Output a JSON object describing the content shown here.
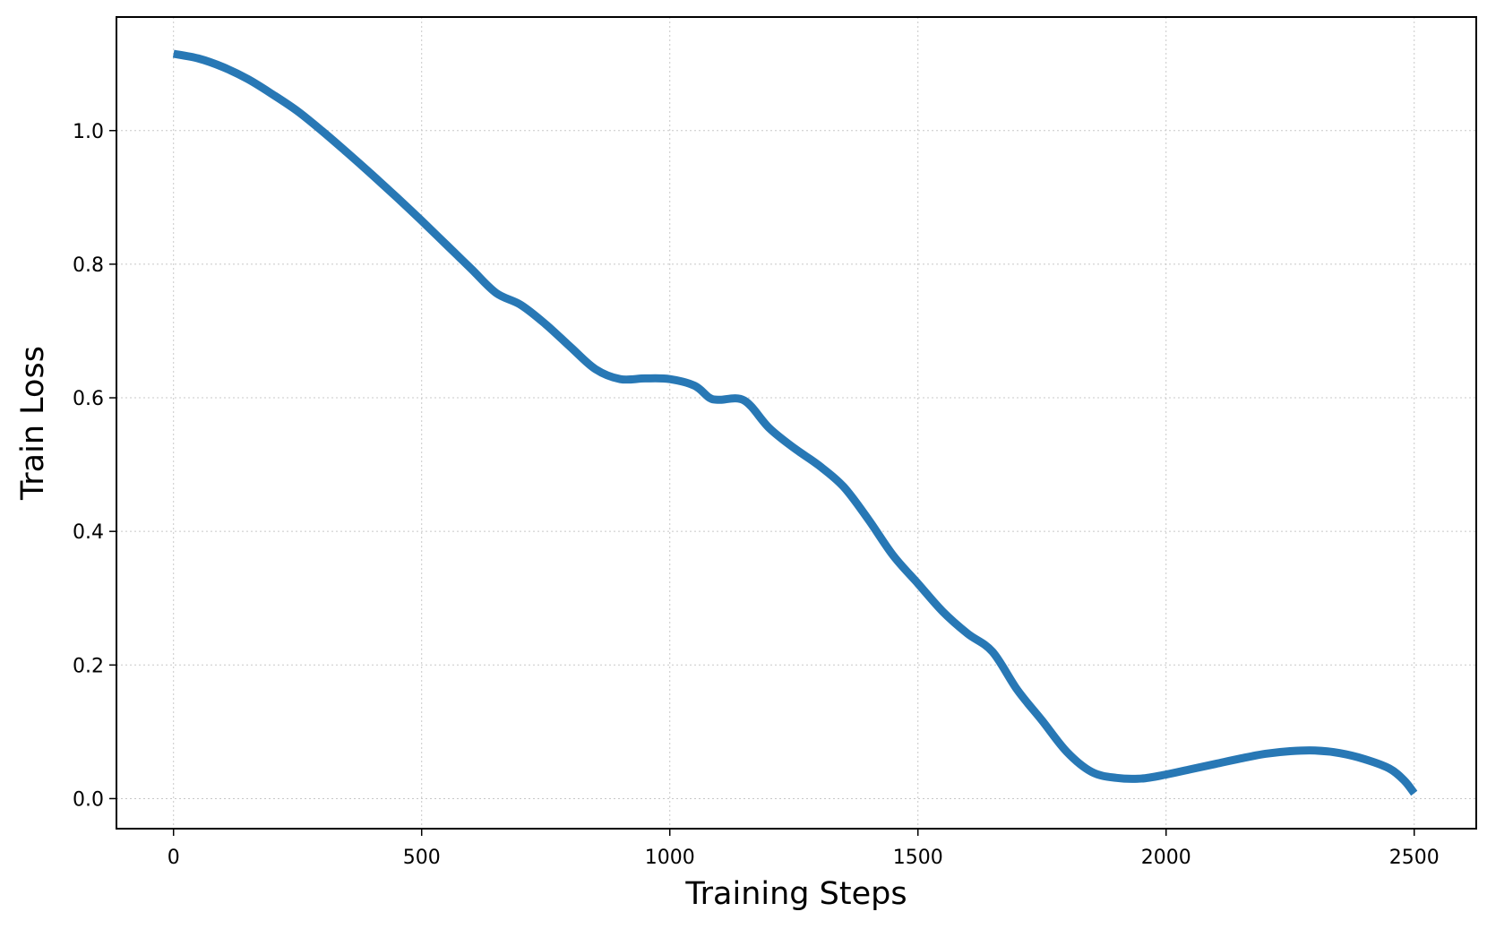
{
  "chart_data": {
    "type": "line",
    "title": "",
    "xlabel": "Training Steps",
    "ylabel": "Train Loss",
    "xlim": [
      -115,
      2625
    ],
    "ylim": [
      -0.045,
      1.17
    ],
    "xticks": [
      0,
      500,
      1000,
      1500,
      2000,
      2500
    ],
    "yticks": [
      0.0,
      0.2,
      0.4,
      0.6,
      0.8,
      1.0
    ],
    "xtick_labels": [
      "0",
      "500",
      "1000",
      "1500",
      "2000",
      "2500"
    ],
    "ytick_labels": [
      "0.0",
      "0.2",
      "0.4",
      "0.6",
      "0.8",
      "1.0"
    ],
    "grid": true,
    "series": [
      {
        "color": "#2878b5",
        "x": [
          0,
          50,
          100,
          150,
          200,
          250,
          300,
          350,
          400,
          450,
          500,
          550,
          600,
          650,
          700,
          750,
          800,
          850,
          900,
          950,
          1000,
          1050,
          1080,
          1100,
          1150,
          1200,
          1250,
          1300,
          1350,
          1400,
          1450,
          1500,
          1550,
          1600,
          1650,
          1700,
          1750,
          1800,
          1850,
          1900,
          1950,
          2000,
          2050,
          2100,
          2150,
          2200,
          2250,
          2300,
          2350,
          2400,
          2450,
          2480,
          2500
        ],
        "y": [
          1.115,
          1.108,
          1.095,
          1.077,
          1.054,
          1.029,
          0.999,
          0.967,
          0.934,
          0.9,
          0.865,
          0.829,
          0.793,
          0.757,
          0.739,
          0.71,
          0.676,
          0.643,
          0.628,
          0.629,
          0.628,
          0.618,
          0.6,
          0.597,
          0.596,
          0.555,
          0.525,
          0.499,
          0.467,
          0.418,
          0.364,
          0.322,
          0.28,
          0.247,
          0.22,
          0.163,
          0.117,
          0.07,
          0.04,
          0.031,
          0.03,
          0.036,
          0.044,
          0.052,
          0.06,
          0.067,
          0.071,
          0.072,
          0.068,
          0.059,
          0.045,
          0.027,
          0.008
        ]
      }
    ]
  }
}
